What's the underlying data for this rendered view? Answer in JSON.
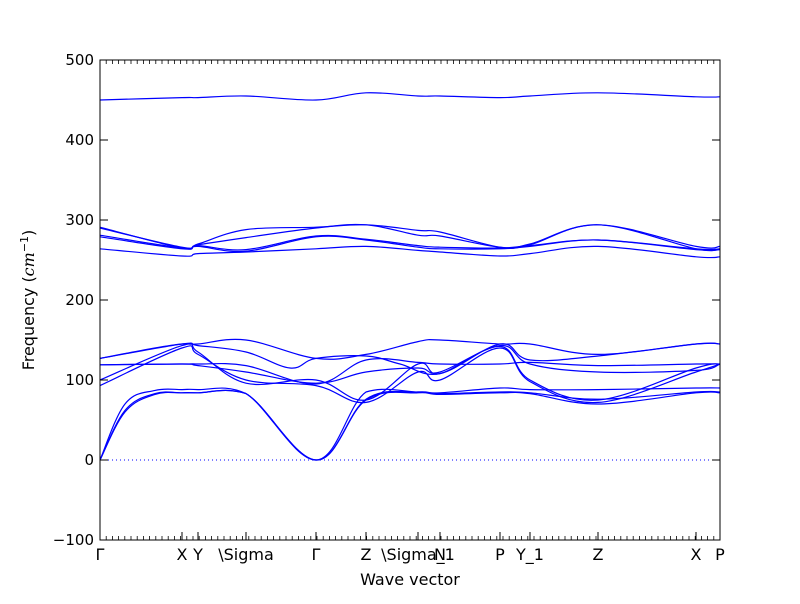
{
  "chart_data": {
    "type": "line",
    "title": "",
    "xlabel": "Wave vector",
    "ylabel_text": "Frequency (",
    "ylabel_unit": "cm",
    "ylabel_exp": "−1",
    "ylabel_close": ")",
    "ylim": [
      -100,
      500
    ],
    "yticks": [
      -100,
      0,
      100,
      200,
      300,
      400,
      500
    ],
    "ytick_labels": [
      "−100",
      "0",
      "100",
      "200",
      "300",
      "400",
      "500"
    ],
    "zero_line": true,
    "grid": false,
    "legend": "none",
    "line_color": "#0000ff",
    "xlim": [
      0,
      6.2
    ],
    "xticks": [
      {
        "x": 0.0,
        "label": "Γ"
      },
      {
        "x": 0.82,
        "label": "X"
      },
      {
        "x": 0.98,
        "label": "Y"
      },
      {
        "x": 1.46,
        "label": "\\Sigma"
      },
      {
        "x": 2.16,
        "label": "Γ"
      },
      {
        "x": 2.66,
        "label": "Z"
      },
      {
        "x": 3.18,
        "label": "\\Sigma_1"
      },
      {
        "x": 3.4,
        "label": "N"
      },
      {
        "x": 4.0,
        "label": "P"
      },
      {
        "x": 4.3,
        "label": "Y_1"
      },
      {
        "x": 4.98,
        "label": "Z"
      },
      {
        "x": 5.96,
        "label": "X"
      },
      {
        "x": 6.2,
        "label": "P"
      }
    ],
    "series": [
      {
        "x": [
          0,
          0.82,
          0.98,
          1.46,
          2.16,
          2.66,
          3.18,
          3.4,
          4.0,
          4.3,
          4.98,
          5.96,
          6.2
        ],
        "y": [
          450,
          453,
          453,
          455,
          450,
          459,
          455,
          455,
          453,
          455,
          459,
          454,
          454
        ]
      },
      {
        "x": [
          0,
          0.82,
          0.98,
          1.46,
          2.16,
          2.66,
          3.18,
          3.4,
          4.0,
          4.3,
          4.98,
          5.96,
          6.2
        ],
        "y": [
          291,
          265,
          270,
          288,
          291,
          294,
          287,
          285,
          266,
          270,
          294,
          267,
          267
        ]
      },
      {
        "x": [
          0,
          0.82,
          0.98,
          1.46,
          2.16,
          2.66,
          3.18,
          3.4,
          4.0,
          4.3,
          4.98,
          5.96,
          6.2
        ],
        "y": [
          290,
          266,
          269,
          278,
          290,
          294,
          281,
          280,
          266,
          269,
          294,
          264,
          264
        ]
      },
      {
        "x": [
          0,
          0.82,
          0.98,
          1.46,
          2.16,
          2.66,
          3.18,
          3.4,
          4.0,
          4.3,
          4.98,
          5.96,
          6.2
        ],
        "y": [
          281,
          265,
          268,
          263,
          280,
          276,
          268,
          266,
          265,
          268,
          275,
          264,
          264
        ]
      },
      {
        "x": [
          0,
          0.82,
          0.98,
          1.46,
          2.16,
          2.66,
          3.18,
          3.4,
          4.0,
          4.3,
          4.98,
          5.96,
          6.2
        ],
        "y": [
          279,
          264,
          267,
          261,
          279,
          275,
          266,
          264,
          264,
          267,
          275,
          263,
          263
        ]
      },
      {
        "x": [
          0,
          0.82,
          0.98,
          1.46,
          2.16,
          2.66,
          3.18,
          3.4,
          4.0,
          4.3,
          4.98,
          5.96,
          6.2
        ],
        "y": [
          264,
          255,
          258,
          260,
          264,
          267,
          262,
          260,
          255,
          258,
          267,
          254,
          254
        ]
      },
      {
        "x": [
          0,
          0.55,
          0.82,
          0.98,
          1.46,
          2.16,
          2.66,
          3.18,
          3.4,
          4.0,
          4.3,
          4.98,
          5.96,
          6.2
        ],
        "y": [
          127,
          140,
          145,
          145,
          150,
          127,
          132,
          148,
          150,
          145,
          145,
          132,
          145,
          145
        ]
      },
      {
        "x": [
          0,
          0.82,
          0.98,
          1.46,
          1.9,
          2.16,
          2.66,
          3.0,
          3.4,
          4.0,
          4.3,
          4.98,
          5.96,
          6.2
        ],
        "y": [
          127,
          145,
          143,
          135,
          115,
          127,
          130,
          120,
          108,
          145,
          125,
          130,
          145,
          145
        ]
      },
      {
        "x": [
          0,
          0.82,
          0.98,
          1.46,
          2.16,
          2.66,
          3.18,
          3.4,
          4.0,
          4.3,
          4.98,
          5.96,
          6.2
        ],
        "y": [
          119,
          120,
          120,
          118,
          95,
          125,
          122,
          120,
          120,
          122,
          118,
          120,
          120
        ]
      },
      {
        "x": [
          0,
          0.82,
          0.98,
          1.46,
          2.16,
          2.66,
          3.18,
          3.4,
          4.0,
          4.3,
          4.98,
          5.96,
          6.2
        ],
        "y": [
          119,
          120,
          118,
          110,
          96,
          110,
          115,
          110,
          143,
          120,
          110,
          112,
          120
        ]
      },
      {
        "x": [
          0,
          0.82,
          0.98,
          1.46,
          2.16,
          2.66,
          3.18,
          3.4,
          4.0,
          4.3,
          4.98,
          5.96,
          6.2
        ],
        "y": [
          100,
          143,
          135,
          96,
          100,
          75,
          120,
          108,
          142,
          100,
          75,
          115,
          120
        ]
      },
      {
        "x": [
          0,
          0.82,
          0.98,
          1.46,
          2.16,
          2.66,
          3.18,
          3.4,
          4.0,
          4.3,
          4.98,
          5.96,
          6.2
        ],
        "y": [
          93,
          140,
          132,
          100,
          93,
          72,
          110,
          100,
          140,
          98,
          72,
          110,
          120
        ]
      },
      {
        "x": [
          0,
          0.25,
          0.55,
          0.82,
          0.98,
          1.46,
          2.16,
          2.66,
          3.18,
          3.4,
          4.0,
          4.3,
          4.98,
          5.96,
          6.2
        ],
        "y": [
          0,
          70,
          87,
          88,
          88,
          83,
          0,
          85,
          85,
          84,
          90,
          88,
          88,
          90,
          90
        ]
      },
      {
        "x": [
          0,
          0.25,
          0.55,
          0.82,
          0.98,
          1.46,
          2.16,
          2.66,
          3.18,
          3.4,
          4.0,
          4.3,
          4.98,
          5.96,
          6.2
        ],
        "y": [
          0,
          62,
          83,
          84,
          84,
          83,
          0,
          76,
          85,
          83,
          85,
          84,
          76,
          85,
          85
        ]
      },
      {
        "x": [
          0,
          0.25,
          0.55,
          0.82,
          0.98,
          1.46,
          2.16,
          2.66,
          3.18,
          3.4,
          4.0,
          4.3,
          4.98,
          5.96,
          6.2
        ],
        "y": [
          0,
          60,
          82,
          84,
          84,
          83,
          0,
          75,
          84,
          82,
          84,
          83,
          70,
          84,
          84
        ]
      }
    ]
  }
}
